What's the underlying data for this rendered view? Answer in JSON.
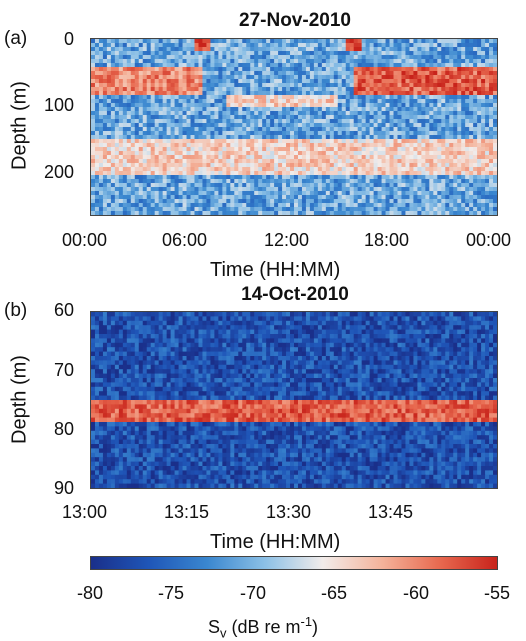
{
  "colors": {
    "colormap": [
      "#1a2f8a",
      "#1f56b8",
      "#3a87cf",
      "#8cc0e6",
      "#f2ecea",
      "#f4b49c",
      "#e86a50",
      "#c8231b"
    ]
  },
  "chart_data": [
    {
      "panel": "(a)",
      "type": "heatmap",
      "title": "27-Nov-2010",
      "xlabel": "Time (HH:MM)",
      "ylabel": "Depth (m)",
      "x_ticks": [
        "00:00",
        "06:00",
        "12:00",
        "18:00",
        "00:00"
      ],
      "y_ticks": [
        "0",
        "100",
        "200"
      ],
      "xlim": [
        "00:00",
        "24:00"
      ],
      "ylim": [
        0,
        260
      ],
      "y_reversed": true,
      "layers": [
        {
          "feature": "upper scattering layer (night)",
          "depth_range_m": [
            40,
            85
          ],
          "time_range": [
            "00:00",
            "06:30"
          ],
          "sv_db": -60
        },
        {
          "feature": "upper scattering layer (night)",
          "depth_range_m": [
            40,
            85
          ],
          "time_range": [
            "15:30",
            "24:00"
          ],
          "sv_db": -58
        },
        {
          "feature": "deep scattering layer",
          "depth_range_m": [
            150,
            200
          ],
          "time_range": [
            "00:00",
            "24:00"
          ],
          "sv_db": -64
        },
        {
          "feature": "surface spike at dawn",
          "depth_range_m": [
            0,
            20
          ],
          "time": "06:40",
          "sv_db": -56
        },
        {
          "feature": "surface spike at dusk",
          "depth_range_m": [
            0,
            20
          ],
          "time": "15:30",
          "sv_db": -56
        },
        {
          "feature": "daytime layer trough",
          "depth_range_m": [
            80,
            100
          ],
          "time_range": [
            "08:00",
            "14:30"
          ],
          "sv_db": -64
        }
      ]
    },
    {
      "panel": "(b)",
      "type": "heatmap",
      "title": "14-Oct-2010",
      "xlabel": "Time (HH:MM)",
      "ylabel": "Depth (m)",
      "x_ticks": [
        "13:00",
        "13:15",
        "13:30",
        "13:45"
      ],
      "y_ticks": [
        "60",
        "70",
        "80",
        "90"
      ],
      "xlim": [
        "13:00",
        "14:00"
      ],
      "ylim": [
        60,
        90
      ],
      "y_reversed": true,
      "layers": [
        {
          "feature": "scattering layer",
          "depth_range_m": [
            75,
            79
          ],
          "time_range": [
            "13:00",
            "14:00"
          ],
          "sv_db": -58
        }
      ]
    }
  ],
  "colorbar": {
    "ticks": [
      "-80",
      "-75",
      "-70",
      "-65",
      "-60",
      "-55"
    ],
    "range": [
      -80,
      -55
    ],
    "label_main": "S",
    "label_sub": "v",
    "label_unit": " (dB re m",
    "label_sup": "-1",
    "label_close": ")"
  }
}
